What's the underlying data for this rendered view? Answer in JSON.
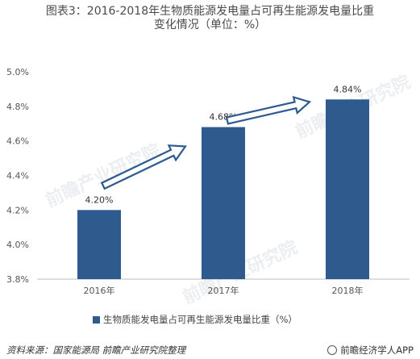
{
  "title_line1": "图表3：2016-2018年生物质能源发电量占可再生能源发电量比重",
  "title_line2": "变化情况（单位：%）",
  "chart_data": {
    "type": "bar",
    "categories": [
      "2016年",
      "2017年",
      "2018年"
    ],
    "series": [
      {
        "name": "生物质能发电量占可再生能源发电量比重（%）",
        "values": [
          4.2,
          4.68,
          4.84
        ]
      }
    ],
    "data_labels": [
      "4.20%",
      "4.68%",
      "4.84%"
    ],
    "ylim": [
      3.8,
      5.0
    ],
    "yticks": [
      "3.8%",
      "4.0%",
      "4.2%",
      "4.4%",
      "4.6%",
      "4.8%",
      "5.0%"
    ],
    "ytick_values": [
      3.8,
      4.0,
      4.2,
      4.4,
      4.6,
      4.8,
      5.0
    ],
    "grid": false,
    "legend_position": "bottom",
    "bar_color": "#2e5a8d"
  },
  "source": "资料来源：国家能源局 前瞻产业研究院整理",
  "brand": "前瞻经济学人APP",
  "watermark": "前瞻产业研究院"
}
